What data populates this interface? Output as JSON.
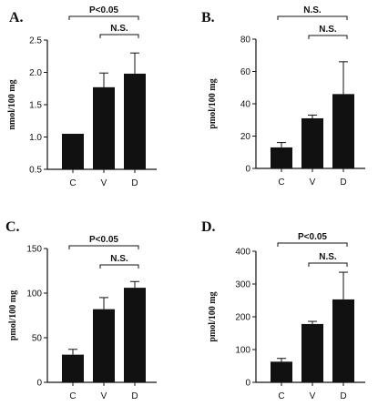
{
  "chart_data": [
    {
      "type": "bar",
      "panel_label": "A.",
      "ylabel": "nmol/100 mg",
      "categories": [
        "C",
        "V",
        "D"
      ],
      "values": [
        1.05,
        1.77,
        1.98
      ],
      "errors": [
        0.0,
        0.22,
        0.32
      ],
      "ylim": [
        0.5,
        2.5
      ],
      "yticks": [
        "0.5",
        "1.0",
        "1.5",
        "2.0",
        "2.5"
      ],
      "bar_color": "#111111",
      "significance": [
        {
          "label": "P<0.05",
          "from": 0,
          "to": 2
        },
        {
          "label": "N.S.",
          "from": 1,
          "to": 2
        }
      ]
    },
    {
      "type": "bar",
      "panel_label": "B.",
      "ylabel": "pmol/100 mg",
      "categories": [
        "C",
        "V",
        "D"
      ],
      "values": [
        13,
        31,
        46
      ],
      "errors": [
        3,
        2,
        20
      ],
      "ylim": [
        0,
        80
      ],
      "yticks": [
        "0",
        "20",
        "40",
        "60",
        "80"
      ],
      "bar_color": "#111111",
      "significance": [
        {
          "label": "N.S.",
          "from": 0,
          "to": 2
        },
        {
          "label": "N.S.",
          "from": 1,
          "to": 2
        }
      ]
    },
    {
      "type": "bar",
      "panel_label": "C.",
      "ylabel": "pmol/100 mg",
      "categories": [
        "C",
        "V",
        "D"
      ],
      "values": [
        31,
        82,
        106
      ],
      "errors": [
        6,
        13,
        7
      ],
      "ylim": [
        0,
        150
      ],
      "yticks": [
        "0",
        "50",
        "100",
        "150"
      ],
      "bar_color": "#111111",
      "significance": [
        {
          "label": "P<0.05",
          "from": 0,
          "to": 2
        },
        {
          "label": "N.S.",
          "from": 1,
          "to": 2
        }
      ]
    },
    {
      "type": "bar",
      "panel_label": "D.",
      "ylabel": "pmol/100 mg",
      "categories": [
        "C",
        "V",
        "D"
      ],
      "values": [
        63,
        178,
        253
      ],
      "errors": [
        10,
        8,
        83
      ],
      "ylim": [
        0,
        400
      ],
      "yticks": [
        "0",
        "100",
        "200",
        "300",
        "400"
      ],
      "bar_color": "#111111",
      "significance": [
        {
          "label": "P<0.05",
          "from": 0,
          "to": 2
        },
        {
          "label": "N.S.",
          "from": 1,
          "to": 2
        }
      ]
    }
  ]
}
